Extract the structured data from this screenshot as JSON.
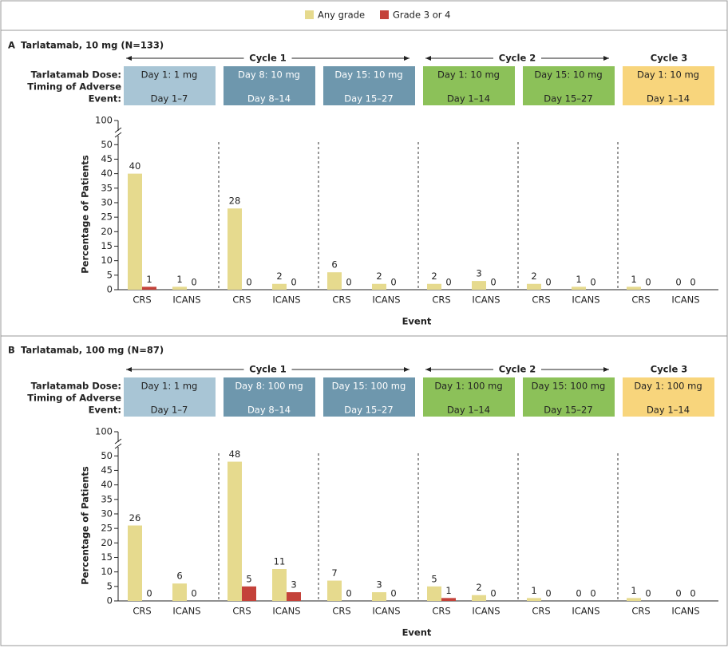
{
  "chart_data": [
    {
      "type": "bar",
      "label": "A",
      "title": "Tarlatamab, 10 mg (N=133)",
      "cycles": [
        "Cycle 1",
        "Cycle 2",
        "Cycle 3"
      ],
      "header_labels": [
        "Tarlatamab Dose:",
        "Timing of Adverse",
        "Event:"
      ],
      "periods": [
        {
          "dose": "Day 1: 1 mg",
          "timing": "Day 1–7",
          "color": "#a8c5d5"
        },
        {
          "dose": "Day 8: 10 mg",
          "timing": "Day 8–14",
          "color": "#6e97ad"
        },
        {
          "dose": "Day 15: 10 mg",
          "timing": "Day 15–27",
          "color": "#6e97ad"
        },
        {
          "dose": "Day 1: 10 mg",
          "timing": "Day 1–14",
          "color": "#8cc159"
        },
        {
          "dose": "Day 15: 10 mg",
          "timing": "Day 15–27",
          "color": "#8cc159"
        },
        {
          "dose": "Day 1: 10 mg",
          "timing": "Day 1–14",
          "color": "#f8d57c"
        }
      ],
      "categories": [
        "CRS",
        "ICANS",
        "CRS",
        "ICANS",
        "CRS",
        "ICANS",
        "CRS",
        "ICANS",
        "CRS",
        "ICANS",
        "CRS",
        "ICANS"
      ],
      "series": [
        {
          "name": "Any grade",
          "color": "#e6da8e",
          "values": [
            40,
            1,
            28,
            2,
            6,
            2,
            2,
            3,
            2,
            1,
            1,
            0
          ]
        },
        {
          "name": "Grade 3 or 4",
          "color": "#c4423a",
          "values": [
            1,
            0,
            0,
            0,
            0,
            0,
            0,
            0,
            0,
            0,
            0,
            0
          ]
        }
      ],
      "xlabel": "Event",
      "ylabel": "Percentage of Patients",
      "ylim": [
        0,
        52
      ],
      "yticks": [
        0,
        5,
        10,
        15,
        20,
        25,
        30,
        35,
        40,
        45,
        50
      ],
      "yticks_above_break": [
        100
      ]
    },
    {
      "type": "bar",
      "label": "B",
      "title": "Tarlatamab, 100 mg (N=87)",
      "cycles": [
        "Cycle 1",
        "Cycle 2",
        "Cycle 3"
      ],
      "header_labels": [
        "Tarlatamab Dose:",
        "Timing of Adverse",
        "Event:"
      ],
      "periods": [
        {
          "dose": "Day 1: 1 mg",
          "timing": "Day 1–7",
          "color": "#a8c5d5"
        },
        {
          "dose": "Day 8: 100 mg",
          "timing": "Day 8–14",
          "color": "#6e97ad"
        },
        {
          "dose": "Day 15: 100 mg",
          "timing": "Day 15–27",
          "color": "#6e97ad"
        },
        {
          "dose": "Day 1: 100 mg",
          "timing": "Day 1–14",
          "color": "#8cc159"
        },
        {
          "dose": "Day 15: 100 mg",
          "timing": "Day 15–27",
          "color": "#8cc159"
        },
        {
          "dose": "Day 1: 100 mg",
          "timing": "Day 1–14",
          "color": "#f8d57c"
        }
      ],
      "categories": [
        "CRS",
        "ICANS",
        "CRS",
        "ICANS",
        "CRS",
        "ICANS",
        "CRS",
        "ICANS",
        "CRS",
        "ICANS",
        "CRS",
        "ICANS"
      ],
      "series": [
        {
          "name": "Any grade",
          "color": "#e6da8e",
          "values": [
            26,
            6,
            48,
            11,
            7,
            3,
            5,
            2,
            1,
            0,
            1,
            0
          ]
        },
        {
          "name": "Grade 3 or 4",
          "color": "#c4423a",
          "values": [
            0,
            0,
            5,
            3,
            0,
            0,
            1,
            0,
            0,
            0,
            0,
            0
          ]
        }
      ],
      "xlabel": "Event",
      "ylabel": "Percentage of Patients",
      "ylim": [
        0,
        52
      ],
      "yticks": [
        0,
        5,
        10,
        15,
        20,
        25,
        30,
        35,
        40,
        45,
        50
      ],
      "yticks_above_break": [
        100
      ]
    }
  ]
}
